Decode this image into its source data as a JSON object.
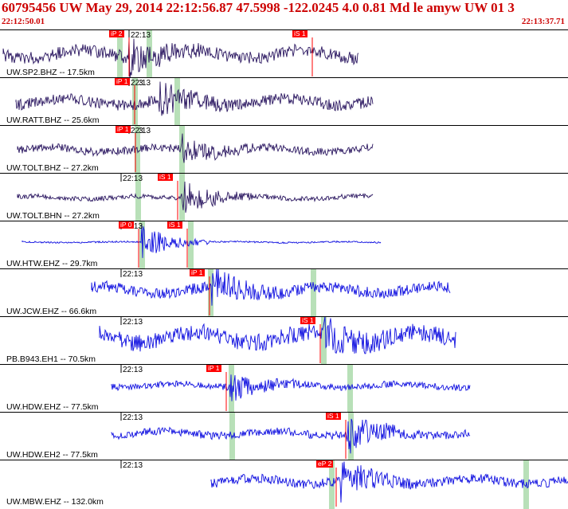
{
  "header": {
    "title": "60795456 UW May 29, 2014 22:12:56.87   47.5998 -122.0245  4.0 0.81 Md le amyw UW 01   3",
    "time_start": "22:12:50.01",
    "time_end": "22:13:37.71"
  },
  "minute_tick_label": "22:13",
  "colors": {
    "vertical_trace": "#2a1660",
    "horizontal_trace": "#1010e0",
    "pick": "#ff0000",
    "window": "#b8e0b8",
    "title": "#cc0000"
  },
  "panels": [
    {
      "label": "UW.SP2.BHZ -- 17.5km",
      "picks": [
        "iP 2",
        "iS 1"
      ]
    },
    {
      "label": "UW.RATT.BHZ -- 25.6km",
      "picks": [
        "iP 1",
        "3"
      ]
    },
    {
      "label": "UW.TOLT.BHZ -- 27.2km",
      "picks": [
        "iP 1",
        "3"
      ]
    },
    {
      "label": "UW.TOLT.BHN -- 27.2km",
      "picks": [
        "iS 1"
      ]
    },
    {
      "label": "UW.HTW.EHZ -- 29.7km",
      "picks": [
        "iP 0",
        "iS 1"
      ]
    },
    {
      "label": "UW.JCW.EHZ -- 66.6km",
      "picks": [
        "iP 1"
      ]
    },
    {
      "label": "PB.B943.EH1 -- 70.5km",
      "picks": [
        "iS 1"
      ]
    },
    {
      "label": "UW.HDW.EHZ -- 77.5km",
      "picks": [
        "iP 1"
      ]
    },
    {
      "label": "UW.HDW.EH2 -- 77.5km",
      "picks": [
        "iS 1"
      ]
    },
    {
      "label": "UW.MBW.EHZ -- 132.0km",
      "picks": [
        "eP 2"
      ]
    }
  ]
}
